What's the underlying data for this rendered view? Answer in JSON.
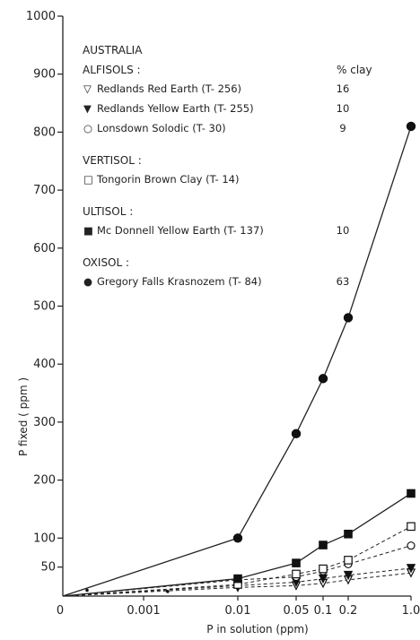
{
  "chart_data": {
    "type": "line",
    "xlabel": "P in solution (ppm)",
    "ylabel": "P fixed ( ppm )",
    "x_tick_labels": [
      "0",
      "0.001",
      "0.01",
      "0.05",
      "0.1",
      "0.2",
      "1.0"
    ],
    "y_tick_labels": [
      "1000",
      "900",
      "800",
      "700",
      "600",
      "500",
      "400",
      "300",
      "200",
      "100",
      "50"
    ],
    "y_ticks": [
      1000,
      900,
      800,
      700,
      600,
      500,
      400,
      300,
      200,
      100,
      50
    ],
    "ylim": [
      0,
      1000
    ],
    "x_scale": "log-ish (0 at origin)",
    "grid": false,
    "legend_placement": "top-left",
    "legend": {
      "region": "AUSTRALIA",
      "clay_header": "% clay",
      "groups": [
        {
          "title": "ALFISOLS :",
          "entries": [
            {
              "marker": "▽",
              "label": "Redlands Red Earth (T- 256)",
              "clay": "16",
              "series": 0
            },
            {
              "marker": "▼",
              "label": "Redlands Yellow Earth (T- 255)",
              "clay": "10",
              "series": 1
            },
            {
              "marker": "○",
              "label": "Lonsdown Solodic (T- 30)",
              "clay": "9",
              "series": 2
            }
          ]
        },
        {
          "title": "VERTISOL :",
          "entries": [
            {
              "marker": "□",
              "label": "Tongorin Brown Clay (T- 14)",
              "clay": "",
              "series": 3
            }
          ]
        },
        {
          "title": "ULTISOL :",
          "entries": [
            {
              "marker": "■",
              "label": "Mc Donnell Yellow Earth (T- 137)",
              "clay": "10",
              "series": 4
            }
          ]
        },
        {
          "title": "OXISOL :",
          "entries": [
            {
              "marker": "●",
              "label": "Gregory Falls Krasnozem (T- 84)",
              "clay": "63",
              "series": 5
            }
          ]
        }
      ]
    },
    "series": [
      {
        "name": "Redlands Red Earth (T- 256)",
        "marker": "triangle-open",
        "dashed": true,
        "points": [
          [
            0,
            0
          ],
          [
            0.01,
            15
          ],
          [
            0.05,
            18
          ],
          [
            0.1,
            22
          ],
          [
            0.2,
            28
          ],
          [
            1.0,
            40
          ]
        ]
      },
      {
        "name": "Redlands Yellow Earth (T- 255)",
        "marker": "triangle-filled",
        "dashed": true,
        "points": [
          [
            0,
            0
          ],
          [
            0.01,
            18
          ],
          [
            0.05,
            24
          ],
          [
            0.1,
            30
          ],
          [
            0.2,
            36
          ],
          [
            1.0,
            48
          ]
        ]
      },
      {
        "name": "Lonsdown Solodic (T- 30)",
        "marker": "circle-open",
        "dashed": true,
        "points": [
          [
            0,
            0
          ],
          [
            0.01,
            28
          ],
          [
            0.05,
            33
          ],
          [
            0.1,
            43
          ],
          [
            0.2,
            55
          ],
          [
            1.0,
            87
          ]
        ]
      },
      {
        "name": "Tongorin Brown Clay (T- 14)",
        "marker": "square-open",
        "dashed": true,
        "points": [
          [
            0,
            0
          ],
          [
            0.01,
            20
          ],
          [
            0.05,
            38
          ],
          [
            0.1,
            47
          ],
          [
            0.2,
            62
          ],
          [
            1.0,
            120
          ]
        ]
      },
      {
        "name": "Mc Donnell Yellow Earth (T- 137)",
        "marker": "square-filled",
        "dashed": false,
        "points": [
          [
            0,
            0
          ],
          [
            0.01,
            30
          ],
          [
            0.05,
            57
          ],
          [
            0.1,
            88
          ],
          [
            0.2,
            107
          ],
          [
            1.0,
            177
          ]
        ]
      },
      {
        "name": "Gregory Falls Krasnozem (T- 84)",
        "marker": "circle-filled",
        "dashed": false,
        "points": [
          [
            0,
            0
          ],
          [
            0.01,
            100
          ],
          [
            0.05,
            280
          ],
          [
            0.1,
            375
          ],
          [
            0.2,
            480
          ],
          [
            1.0,
            810
          ]
        ]
      }
    ],
    "extra_small_points": [
      [
        0.0003,
        10
      ],
      [
        0.0018,
        8
      ]
    ]
  }
}
